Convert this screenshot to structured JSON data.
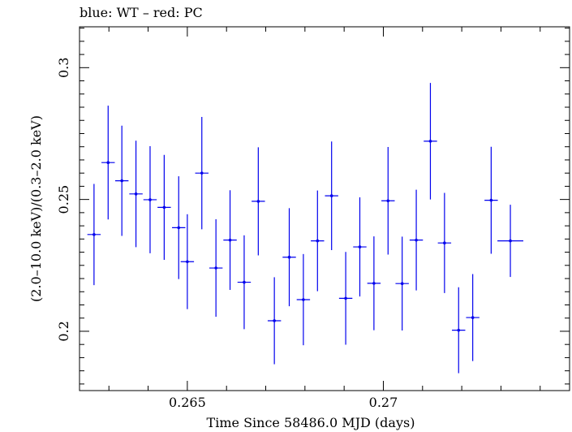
{
  "chart_data": {
    "type": "scatter",
    "title": "blue: WT – red: PC",
    "xlabel": "Time Since 58486.0 MJD (days)",
    "ylabel": "(2.0–10.0 keV)/(0.3–2.0 keV)",
    "xlim": [
      0.26225,
      0.27475
    ],
    "ylim": [
      0.1775,
      0.3155
    ],
    "xticks": [
      0.265,
      0.27
    ],
    "xtick_labels": [
      "0.265",
      "0.27"
    ],
    "yticks": [
      0.2,
      0.25,
      0.3
    ],
    "ytick_labels": [
      "0.2",
      "0.25",
      "0.3"
    ],
    "grid": false,
    "series": [
      {
        "color": "#0000ee",
        "points": [
          {
            "x": 0.26262,
            "y": 0.2367,
            "xerr": 0.00017,
            "yerr": 0.0192
          },
          {
            "x": 0.26298,
            "y": 0.264,
            "xerr": 0.00017,
            "yerr": 0.0216
          },
          {
            "x": 0.26333,
            "y": 0.2571,
            "xerr": 0.00017,
            "yerr": 0.0209
          },
          {
            "x": 0.26369,
            "y": 0.2521,
            "xerr": 0.00017,
            "yerr": 0.0202
          },
          {
            "x": 0.26405,
            "y": 0.2499,
            "xerr": 0.00017,
            "yerr": 0.0203
          },
          {
            "x": 0.26441,
            "y": 0.247,
            "xerr": 0.00017,
            "yerr": 0.0199
          },
          {
            "x": 0.26478,
            "y": 0.2393,
            "xerr": 0.00017,
            "yerr": 0.0195
          },
          {
            "x": 0.265,
            "y": 0.2264,
            "xerr": 0.00017,
            "yerr": 0.018
          },
          {
            "x": 0.26537,
            "y": 0.26,
            "xerr": 0.00017,
            "yerr": 0.0213
          },
          {
            "x": 0.26573,
            "y": 0.224,
            "xerr": 0.00017,
            "yerr": 0.0185
          },
          {
            "x": 0.26609,
            "y": 0.2346,
            "xerr": 0.00017,
            "yerr": 0.0189
          },
          {
            "x": 0.26645,
            "y": 0.2186,
            "xerr": 0.00017,
            "yerr": 0.0178
          },
          {
            "x": 0.26681,
            "y": 0.2493,
            "xerr": 0.00017,
            "yerr": 0.0205
          },
          {
            "x": 0.26722,
            "y": 0.204,
            "xerr": 0.00017,
            "yerr": 0.0165
          },
          {
            "x": 0.2676,
            "y": 0.2281,
            "xerr": 0.00017,
            "yerr": 0.0186
          },
          {
            "x": 0.26796,
            "y": 0.212,
            "xerr": 0.00017,
            "yerr": 0.0173
          },
          {
            "x": 0.26832,
            "y": 0.2343,
            "xerr": 0.00017,
            "yerr": 0.0191
          },
          {
            "x": 0.26868,
            "y": 0.2514,
            "xerr": 0.00017,
            "yerr": 0.0206
          },
          {
            "x": 0.26904,
            "y": 0.2125,
            "xerr": 0.00017,
            "yerr": 0.0176
          },
          {
            "x": 0.2694,
            "y": 0.232,
            "xerr": 0.00017,
            "yerr": 0.0188
          },
          {
            "x": 0.26976,
            "y": 0.2182,
            "xerr": 0.00017,
            "yerr": 0.0178
          },
          {
            "x": 0.27012,
            "y": 0.2495,
            "xerr": 0.00017,
            "yerr": 0.0204
          },
          {
            "x": 0.27048,
            "y": 0.2181,
            "xerr": 0.00017,
            "yerr": 0.0178
          },
          {
            "x": 0.27084,
            "y": 0.2346,
            "xerr": 0.00017,
            "yerr": 0.0191
          },
          {
            "x": 0.2712,
            "y": 0.2721,
            "xerr": 0.00017,
            "yerr": 0.0221
          },
          {
            "x": 0.27156,
            "y": 0.2335,
            "xerr": 0.00017,
            "yerr": 0.019
          },
          {
            "x": 0.27192,
            "y": 0.2004,
            "xerr": 0.00017,
            "yerr": 0.0163
          },
          {
            "x": 0.27228,
            "y": 0.2052,
            "xerr": 0.00017,
            "yerr": 0.0165
          },
          {
            "x": 0.27275,
            "y": 0.2497,
            "xerr": 0.00017,
            "yerr": 0.0203
          },
          {
            "x": 0.27324,
            "y": 0.2343,
            "xerr": 0.00033,
            "yerr": 0.0137
          }
        ]
      }
    ]
  }
}
